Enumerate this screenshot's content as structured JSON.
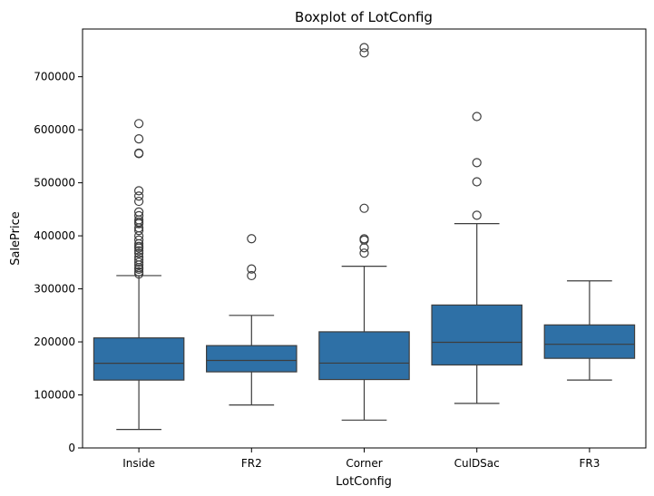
{
  "chart_data": {
    "type": "box",
    "title": "Boxplot of LotConfig",
    "xlabel": "LotConfig",
    "ylabel": "SalePrice",
    "ylim": [
      0,
      790000
    ],
    "yticks": [
      0,
      100000,
      200000,
      300000,
      400000,
      500000,
      600000,
      700000
    ],
    "grid": false,
    "box_color": "#2e70a6",
    "line_color": "#3d3d3d",
    "categories": [
      "Inside",
      "FR2",
      "Corner",
      "CulDSac",
      "FR3"
    ],
    "boxes": [
      {
        "category": "Inside",
        "whisker_low": 34900,
        "q1": 128000,
        "median": 159697,
        "q3": 207500,
        "whisker_high": 325000,
        "outliers": [
          328000,
          332000,
          337000,
          340000,
          345000,
          350000,
          355000,
          360000,
          367000,
          372000,
          377000,
          380000,
          385000,
          392000,
          400000,
          410000,
          415000,
          423000,
          426000,
          430000,
          438000,
          445000,
          465000,
          475000,
          485000,
          555000,
          556000,
          582933,
          611657
        ]
      },
      {
        "category": "FR2",
        "whisker_low": 81000,
        "q1": 143500,
        "median": 165000,
        "q3": 193000,
        "whisker_high": 250000,
        "outliers": [
          325000,
          337500,
          394617
        ]
      },
      {
        "category": "Corner",
        "whisker_low": 52500,
        "q1": 129000,
        "median": 160000,
        "q3": 219000,
        "whisker_high": 342643,
        "outliers": [
          367294,
          377500,
          392000,
          394432,
          451950,
          745000,
          755000
        ]
      },
      {
        "category": "CulDSac",
        "whisker_low": 84000,
        "q1": 156500,
        "median": 199262,
        "q3": 269500,
        "whisker_high": 423000,
        "outliers": [
          438780,
          501837,
          538000,
          625000
        ]
      },
      {
        "category": "FR3",
        "whisker_low": 128000,
        "q1": 169000,
        "median": 195450,
        "q3": 232000,
        "whisker_high": 315000,
        "outliers": []
      }
    ]
  }
}
